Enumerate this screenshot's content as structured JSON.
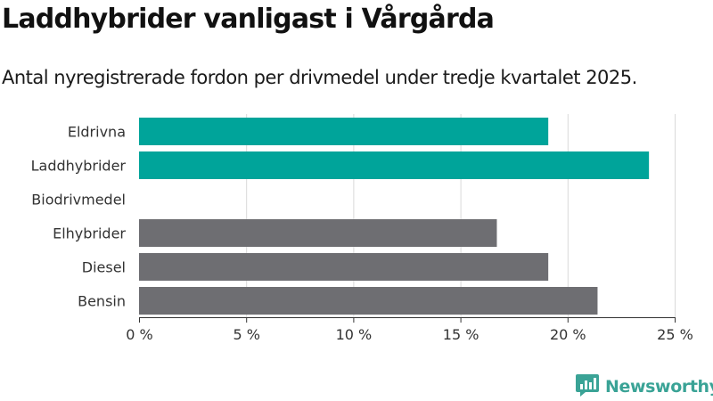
{
  "title": "Laddhybrider vanligast i Vårgårda",
  "subtitle": "Antal nyregistrerade fordon per drivmedel under tredje kvartalet 2025.",
  "brand": {
    "name": "Newsworthy",
    "icon": "newsworthy-logo-icon"
  },
  "colors": {
    "highlight": "#00a49a",
    "default": "#6e6e72",
    "grid": "#d9d9d9",
    "axis": "#333333",
    "text": "#333333",
    "brand": "#3aa396"
  },
  "chart_data": {
    "type": "bar",
    "orientation": "horizontal",
    "categories": [
      "Eldrivna",
      "Laddhybrider",
      "Biodrivmedel",
      "Elhybrider",
      "Diesel",
      "Bensin"
    ],
    "values": [
      19.1,
      23.8,
      0,
      16.7,
      19.1,
      21.4
    ],
    "highlighted": [
      true,
      true,
      false,
      false,
      false,
      false
    ],
    "x_ticks": [
      "0 %",
      "5 %",
      "10 %",
      "15 %",
      "20 %",
      "25 %"
    ],
    "x_tick_values": [
      0,
      5,
      10,
      15,
      20,
      25
    ],
    "xlim": [
      0,
      25
    ],
    "grid": true
  }
}
